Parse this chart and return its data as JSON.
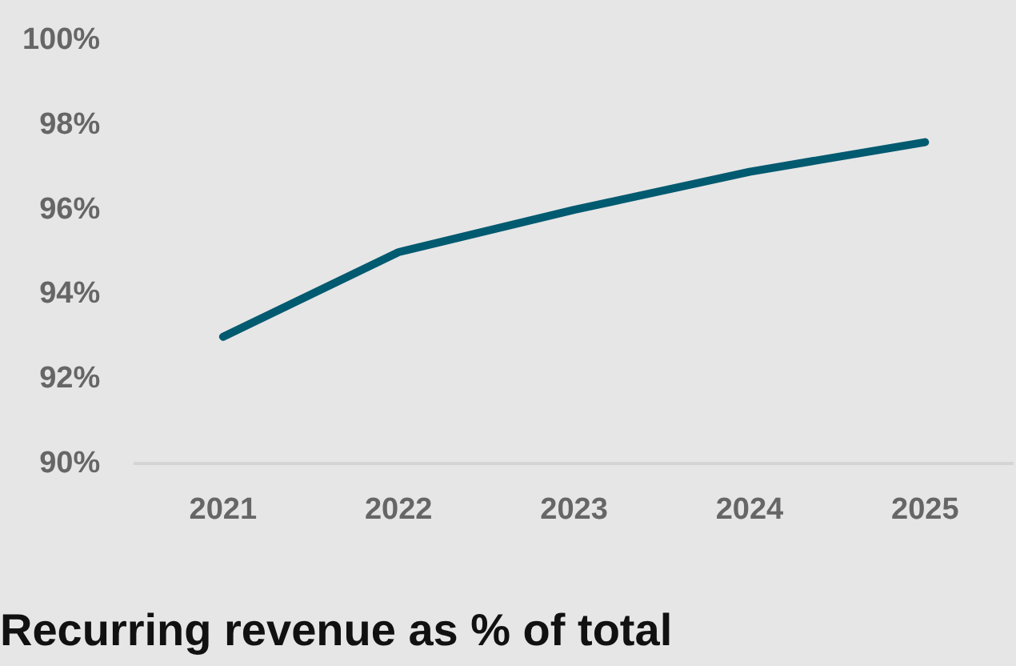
{
  "chart_data": {
    "type": "line",
    "title": "Recurring revenue as % of total",
    "categories": [
      "2021",
      "2022",
      "2023",
      "2024",
      "2025"
    ],
    "series": [
      {
        "color": "#005a70",
        "values": [
          93.0,
          95.0,
          96.0,
          96.9,
          97.6
        ]
      }
    ],
    "ylim": [
      90,
      100
    ],
    "yticks": [
      {
        "value": 90,
        "label": "90%"
      },
      {
        "value": 92,
        "label": "92%"
      },
      {
        "value": 94,
        "label": "94%"
      },
      {
        "value": 96,
        "label": "96%"
      },
      {
        "value": 98,
        "label": "98%"
      },
      {
        "value": 100,
        "label": "100%"
      }
    ],
    "grid": false,
    "legend": false,
    "marker": "none",
    "line_style": "solid"
  }
}
